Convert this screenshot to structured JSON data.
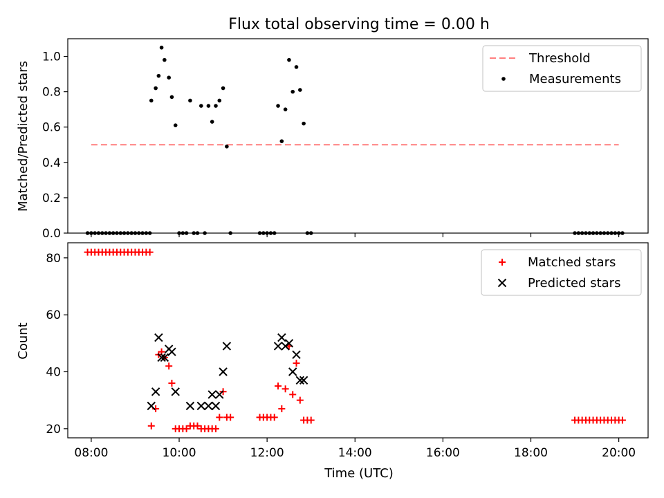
{
  "chart_data": [
    {
      "type": "scatter",
      "title": "Flux total observing time = 0.00 h",
      "ylabel": "Matched/Predicted stars",
      "ylim": [
        0,
        1.1
      ],
      "y_ticks": [
        0.0,
        0.2,
        0.4,
        0.6,
        0.8,
        1.0
      ],
      "y_tick_labels": [
        "0.0",
        "0.2",
        "0.4",
        "0.6",
        "0.8",
        "1.0"
      ],
      "legend_position": "top-right",
      "series": [
        {
          "name": "Threshold",
          "kind": "dashed-line",
          "color": "#ff7f7f",
          "points": [
            [
              "08:00",
              0.5
            ],
            [
              "20:00",
              0.5
            ]
          ]
        },
        {
          "name": "Measurements",
          "kind": "dot",
          "color": "#000000",
          "points": [
            [
              "07:55",
              0
            ],
            [
              "08:00",
              0
            ],
            [
              "08:05",
              0
            ],
            [
              "08:10",
              0
            ],
            [
              "08:15",
              0
            ],
            [
              "08:20",
              0
            ],
            [
              "08:25",
              0
            ],
            [
              "08:30",
              0
            ],
            [
              "08:35",
              0
            ],
            [
              "08:40",
              0
            ],
            [
              "08:45",
              0
            ],
            [
              "08:50",
              0
            ],
            [
              "08:55",
              0
            ],
            [
              "09:00",
              0
            ],
            [
              "09:05",
              0
            ],
            [
              "09:10",
              0
            ],
            [
              "09:15",
              0
            ],
            [
              "09:20",
              0
            ],
            [
              "09:22",
              0.75
            ],
            [
              "09:28",
              0.82
            ],
            [
              "09:32",
              0.89
            ],
            [
              "09:36",
              1.05
            ],
            [
              "09:40",
              0.98
            ],
            [
              "09:46",
              0.88
            ],
            [
              "09:50",
              0.77
            ],
            [
              "09:55",
              0.61
            ],
            [
              "10:00",
              0
            ],
            [
              "10:05",
              0
            ],
            [
              "10:10",
              0
            ],
            [
              "10:15",
              0.75
            ],
            [
              "10:20",
              0
            ],
            [
              "10:25",
              0
            ],
            [
              "10:30",
              0.72
            ],
            [
              "10:35",
              0
            ],
            [
              "10:40",
              0.72
            ],
            [
              "10:45",
              0.63
            ],
            [
              "10:50",
              0.72
            ],
            [
              "10:55",
              0.75
            ],
            [
              "11:00",
              0.82
            ],
            [
              "11:05",
              0.49
            ],
            [
              "11:10",
              0
            ],
            [
              "11:50",
              0
            ],
            [
              "11:55",
              0
            ],
            [
              "12:00",
              0
            ],
            [
              "12:05",
              0
            ],
            [
              "12:10",
              0
            ],
            [
              "12:15",
              0.72
            ],
            [
              "12:20",
              0.52
            ],
            [
              "12:25",
              0.7
            ],
            [
              "12:30",
              0.98
            ],
            [
              "12:35",
              0.8
            ],
            [
              "12:40",
              0.94
            ],
            [
              "12:45",
              0.81
            ],
            [
              "12:50",
              0.62
            ],
            [
              "12:55",
              0
            ],
            [
              "13:00",
              0
            ],
            [
              "19:00",
              0
            ],
            [
              "19:05",
              0
            ],
            [
              "19:10",
              0
            ],
            [
              "19:15",
              0
            ],
            [
              "19:20",
              0
            ],
            [
              "19:25",
              0
            ],
            [
              "19:30",
              0
            ],
            [
              "19:35",
              0
            ],
            [
              "19:40",
              0
            ],
            [
              "19:45",
              0
            ],
            [
              "19:50",
              0
            ],
            [
              "19:55",
              0
            ],
            [
              "20:00",
              0
            ],
            [
              "20:05",
              0
            ]
          ]
        }
      ]
    },
    {
      "type": "scatter",
      "xlabel": "Time (UTC)",
      "ylabel": "Count",
      "ylim": [
        16.8,
        85.3
      ],
      "y_ticks": [
        20,
        40,
        60,
        80
      ],
      "y_tick_labels": [
        "20",
        "40",
        "60",
        "80"
      ],
      "x_ticks": [
        "08:00",
        "10:00",
        "12:00",
        "14:00",
        "16:00",
        "18:00",
        "20:00"
      ],
      "x_tick_labels": [
        "08:00",
        "10:00",
        "12:00",
        "14:00",
        "16:00",
        "18:00",
        "20:00"
      ],
      "legend_position": "top-right",
      "series": [
        {
          "name": "Matched stars",
          "kind": "plus",
          "color": "#ff0000",
          "points": [
            [
              "07:55",
              82
            ],
            [
              "08:00",
              82
            ],
            [
              "08:05",
              82
            ],
            [
              "08:10",
              82
            ],
            [
              "08:15",
              82
            ],
            [
              "08:20",
              82
            ],
            [
              "08:25",
              82
            ],
            [
              "08:30",
              82
            ],
            [
              "08:35",
              82
            ],
            [
              "08:40",
              82
            ],
            [
              "08:45",
              82
            ],
            [
              "08:50",
              82
            ],
            [
              "08:55",
              82
            ],
            [
              "09:00",
              82
            ],
            [
              "09:05",
              82
            ],
            [
              "09:10",
              82
            ],
            [
              "09:15",
              82
            ],
            [
              "09:20",
              82
            ],
            [
              "09:22",
              21
            ],
            [
              "09:28",
              27
            ],
            [
              "09:32",
              46
            ],
            [
              "09:36",
              47
            ],
            [
              "09:40",
              45
            ],
            [
              "09:46",
              42
            ],
            [
              "09:50",
              36
            ],
            [
              "09:55",
              20
            ],
            [
              "10:00",
              20
            ],
            [
              "10:05",
              20
            ],
            [
              "10:10",
              20
            ],
            [
              "10:15",
              21
            ],
            [
              "10:20",
              21
            ],
            [
              "10:25",
              21
            ],
            [
              "10:30",
              20
            ],
            [
              "10:35",
              20
            ],
            [
              "10:40",
              20
            ],
            [
              "10:45",
              20
            ],
            [
              "10:50",
              20
            ],
            [
              "10:55",
              24
            ],
            [
              "11:00",
              33
            ],
            [
              "11:05",
              24
            ],
            [
              "11:10",
              24
            ],
            [
              "11:50",
              24
            ],
            [
              "11:55",
              24
            ],
            [
              "12:00",
              24
            ],
            [
              "12:05",
              24
            ],
            [
              "12:10",
              24
            ],
            [
              "12:15",
              35
            ],
            [
              "12:20",
              27
            ],
            [
              "12:25",
              34
            ],
            [
              "12:30",
              49
            ],
            [
              "12:35",
              32
            ],
            [
              "12:40",
              43
            ],
            [
              "12:45",
              30
            ],
            [
              "12:50",
              23
            ],
            [
              "12:55",
              23
            ],
            [
              "13:00",
              23
            ],
            [
              "19:00",
              23
            ],
            [
              "19:05",
              23
            ],
            [
              "19:10",
              23
            ],
            [
              "19:15",
              23
            ],
            [
              "19:20",
              23
            ],
            [
              "19:25",
              23
            ],
            [
              "19:30",
              23
            ],
            [
              "19:35",
              23
            ],
            [
              "19:40",
              23
            ],
            [
              "19:45",
              23
            ],
            [
              "19:50",
              23
            ],
            [
              "19:55",
              23
            ],
            [
              "20:00",
              23
            ],
            [
              "20:05",
              23
            ]
          ]
        },
        {
          "name": "Predicted stars",
          "kind": "x",
          "color": "#000000",
          "points": [
            [
              "09:22",
              28
            ],
            [
              "09:28",
              33
            ],
            [
              "09:32",
              52
            ],
            [
              "09:36",
              45
            ],
            [
              "09:40",
              45
            ],
            [
              "09:46",
              48
            ],
            [
              "09:50",
              47
            ],
            [
              "09:55",
              33
            ],
            [
              "10:15",
              28
            ],
            [
              "10:30",
              28
            ],
            [
              "10:40",
              28
            ],
            [
              "10:45",
              32
            ],
            [
              "10:50",
              28
            ],
            [
              "10:55",
              32
            ],
            [
              "11:00",
              40
            ],
            [
              "11:05",
              49
            ],
            [
              "12:15",
              49
            ],
            [
              "12:20",
              52
            ],
            [
              "12:25",
              49
            ],
            [
              "12:30",
              50
            ],
            [
              "12:35",
              40
            ],
            [
              "12:40",
              46
            ],
            [
              "12:45",
              37
            ],
            [
              "12:50",
              37
            ]
          ]
        }
      ]
    }
  ]
}
